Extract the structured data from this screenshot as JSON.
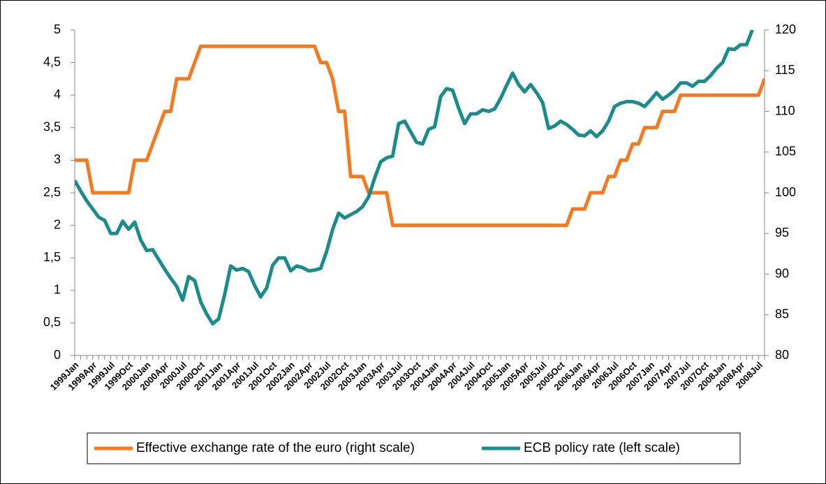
{
  "chart_data": {
    "type": "line",
    "categories": [
      "1999Jan",
      null,
      null,
      "1999Apr",
      null,
      null,
      "1999Jul",
      null,
      null,
      "1999Oct",
      null,
      null,
      "2000Jan",
      null,
      null,
      "2000Apr",
      null,
      null,
      "2000Jul",
      null,
      null,
      "2000Oct",
      null,
      null,
      "2001Jan",
      null,
      null,
      "2001Apr",
      null,
      null,
      "2001Jul",
      null,
      null,
      "2001Oct",
      null,
      null,
      "2002Jan",
      null,
      null,
      "2002Apr",
      null,
      null,
      "2002Jul",
      null,
      null,
      "2002Oct",
      null,
      null,
      "2003Jan",
      null,
      null,
      "2003Apr",
      null,
      null,
      "2003Jul",
      null,
      null,
      "2003Oct",
      null,
      null,
      "2004Jan",
      null,
      null,
      "2004Apr",
      null,
      null,
      "2004Jul",
      null,
      null,
      "2004Oct",
      null,
      null,
      "2005Jan",
      null,
      null,
      "2005Apr",
      null,
      null,
      "2005Jul",
      null,
      null,
      "2005Oct",
      null,
      null,
      "2006Jan",
      null,
      null,
      "2006Apr",
      null,
      null,
      "2006Jul",
      null,
      null,
      "2006Oct",
      null,
      null,
      "2007Jan",
      null,
      null,
      "2007Apr",
      null,
      null,
      "2007Jul",
      null,
      null,
      "2007Oct",
      null,
      null,
      "2008Jan",
      null,
      null,
      "2008Apr",
      null,
      null,
      "2008Jul",
      null
    ],
    "series": [
      {
        "name": "Effective exchange rate of the euro (right scale)",
        "color": "#f47a20",
        "axis": "y",
        "values": [
          3,
          3,
          3,
          2.5,
          2.5,
          2.5,
          2.5,
          2.5,
          2.5,
          2.5,
          3,
          3,
          3,
          3.25,
          3.5,
          3.75,
          3.75,
          4.25,
          4.25,
          4.25,
          4.5,
          4.75,
          4.75,
          4.75,
          4.75,
          4.75,
          4.75,
          4.75,
          4.75,
          4.75,
          4.75,
          4.75,
          4.75,
          4.75,
          4.75,
          4.75,
          4.75,
          4.75,
          4.75,
          4.75,
          4.75,
          4.5,
          4.5,
          4.25,
          3.75,
          3.75,
          2.75,
          2.75,
          2.75,
          2.5,
          2.5,
          2.5,
          2.5,
          2,
          2,
          2,
          2,
          2,
          2,
          2,
          2,
          2,
          2,
          2,
          2,
          2,
          2,
          2,
          2,
          2,
          2,
          2,
          2,
          2,
          2,
          2,
          2,
          2,
          2,
          2,
          2,
          2,
          2,
          2.25,
          2.25,
          2.25,
          2.5,
          2.5,
          2.5,
          2.75,
          2.75,
          3,
          3,
          3.25,
          3.25,
          3.5,
          3.5,
          3.5,
          3.75,
          3.75,
          3.75,
          4,
          4,
          4,
          4,
          4,
          4,
          4,
          4,
          4,
          4,
          4,
          4,
          4,
          4,
          4.25
        ]
      },
      {
        "name": "ECB policy rate (left scale)",
        "color": "#1a8c8c",
        "axis": "y2",
        "values": [
          101.5,
          100.2,
          99.0,
          98.0,
          97.0,
          96.6,
          95.0,
          95.0,
          96.5,
          95.5,
          96.4,
          94.2,
          92.9,
          93.0,
          91.8,
          90.6,
          89.5,
          88.5,
          86.8,
          89.7,
          89.2,
          86.6,
          85.1,
          83.9,
          84.5,
          87.5,
          91.0,
          90.5,
          90.7,
          90.3,
          88.6,
          87.2,
          88.3,
          91.1,
          92.0,
          92.0,
          90.4,
          91.0,
          90.8,
          90.4,
          90.5,
          90.7,
          92.8,
          95.5,
          97.5,
          96.9,
          97.3,
          97.7,
          98.3,
          99.5,
          101.8,
          103.8,
          104.3,
          104.5,
          108.5,
          108.8,
          107.5,
          106.2,
          106.0,
          107.8,
          108.1,
          111.8,
          112.8,
          112.6,
          110.4,
          108.5,
          109.7,
          109.7,
          110.2,
          110.0,
          110.3,
          111.6,
          113.2,
          114.7,
          113.3,
          112.4,
          113.3,
          112.3,
          111.1,
          107.9,
          108.2,
          108.8,
          108.4,
          107.8,
          107.1,
          107.0,
          107.6,
          106.9,
          107.6,
          108.8,
          110.6,
          111.0,
          111.2,
          111.2,
          111.0,
          110.6,
          111.4,
          112.3,
          111.5,
          112.0,
          112.6,
          113.5,
          113.5,
          113.1,
          113.7,
          113.7,
          114.4,
          115.3,
          116.0,
          117.7,
          117.6,
          118.2,
          118.2,
          120.1,
          121.5,
          120.8
        ]
      }
    ],
    "ylim": [
      0,
      5
    ],
    "yticks": [
      0,
      {
        "value": 0.5,
        "label": "0,5"
      },
      1,
      {
        "value": 1.5,
        "label": "1,5"
      },
      2,
      {
        "value": 2.5,
        "label": "2,5"
      },
      3,
      {
        "value": 3.5,
        "label": "3,5"
      },
      4,
      {
        "value": 4.5,
        "label": "4,5"
      },
      5
    ],
    "y2lim": [
      80,
      120
    ],
    "y2ticks": [
      80,
      85,
      90,
      95,
      100,
      105,
      110,
      115,
      120
    ],
    "grid": false
  }
}
